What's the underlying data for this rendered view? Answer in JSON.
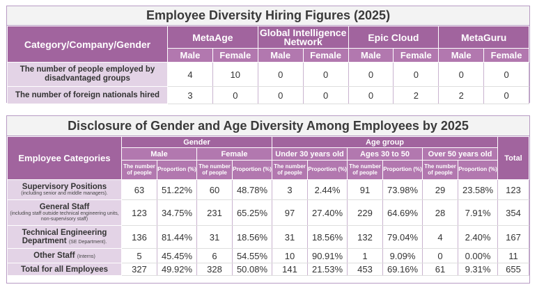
{
  "table1": {
    "title": "Employee Diversity Hiring Figures (2025)",
    "corner": "Category/Company/Gender",
    "companies": [
      "MetaAge",
      "Global Intelligence Network",
      "Epic Cloud",
      "MetaGuru"
    ],
    "genders": [
      "Male",
      "Female"
    ],
    "rows": [
      {
        "label": "The number of people employed by disadvantaged groups",
        "values": [
          "4",
          "10",
          "0",
          "0",
          "0",
          "0",
          "0",
          "0"
        ]
      },
      {
        "label": "The number of foreign nationals hired",
        "values": [
          "3",
          "0",
          "0",
          "0",
          "0",
          "2",
          "2",
          "0"
        ]
      }
    ]
  },
  "table2": {
    "title": "Disclosure of Gender and Age Diversity Among Employees by 2025",
    "corner": "Employee Categories",
    "group_gender": "Gender",
    "group_age": "Age group",
    "total_label": "Total",
    "subgroups": [
      "Male",
      "Female",
      "Under 30 years old",
      "Ages 30 to 50",
      "Over 50 years old"
    ],
    "col_people": "The number of people",
    "col_prop": "Proportion (%)",
    "rows": [
      {
        "label": "Supervisory Positions",
        "note": "(including senior and middle managers).",
        "values": [
          "63",
          "51.22%",
          "60",
          "48.78%",
          "3",
          "2.44%",
          "91",
          "73.98%",
          "29",
          "23.58%",
          "123"
        ]
      },
      {
        "label": "General Staff",
        "note": "(including staff outside technical engineering units, non-supervisory staff)",
        "values": [
          "123",
          "34.75%",
          "231",
          "65.25%",
          "97",
          "27.40%",
          "229",
          "64.69%",
          "28",
          "7.91%",
          "354"
        ]
      },
      {
        "label": "Technical Engineering Department",
        "note": "(SE Department).",
        "values": [
          "136",
          "81.44%",
          "31",
          "18.56%",
          "31",
          "18.56%",
          "132",
          "79.04%",
          "4",
          "2.40%",
          "167"
        ]
      },
      {
        "label": "Other Staff",
        "note": "(Interns)",
        "values": [
          "5",
          "45.45%",
          "6",
          "54.55%",
          "10",
          "90.91%",
          "1",
          "9.09%",
          "0",
          "0.00%",
          "11"
        ]
      },
      {
        "label": "Total for all Employees",
        "note": "",
        "values": [
          "327",
          "49.92%",
          "328",
          "50.08%",
          "141",
          "21.53%",
          "453",
          "69.16%",
          "61",
          "9.31%",
          "655"
        ]
      }
    ]
  }
}
